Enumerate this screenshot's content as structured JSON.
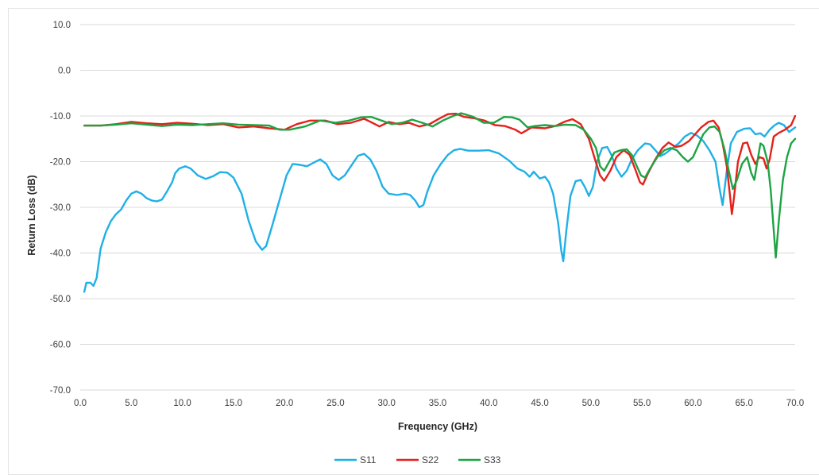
{
  "chart_data": {
    "type": "line",
    "title": "",
    "xlabel": "Frequency (GHz)",
    "ylabel": "Return Loss (dB)",
    "xlim": [
      0,
      70
    ],
    "ylim": [
      -70,
      10
    ],
    "x_ticks": [
      "0.0",
      "5.0",
      "10.0",
      "15.0",
      "20.0",
      "25.0",
      "30.0",
      "35.0",
      "40.0",
      "45.0",
      "50.0",
      "55.0",
      "60.0",
      "65.0",
      "70.0"
    ],
    "y_ticks": [
      "10.0",
      "0.0",
      "-10.0",
      "-20.0",
      "-30.0",
      "-40.0",
      "-50.0",
      "-60.0",
      "-70.0"
    ],
    "grid": "horizontal",
    "legend_position": "bottom",
    "series": [
      {
        "name": "S11",
        "color": "#1fb0e6",
        "points": [
          [
            0.4,
            -48.5
          ],
          [
            0.6,
            -46.5
          ],
          [
            1.0,
            -46.5
          ],
          [
            1.3,
            -47.2
          ],
          [
            1.6,
            -45.5
          ],
          [
            2.0,
            -39.0
          ],
          [
            2.5,
            -35.5
          ],
          [
            3.0,
            -33.0
          ],
          [
            3.5,
            -31.5
          ],
          [
            4.0,
            -30.5
          ],
          [
            4.5,
            -28.5
          ],
          [
            5.0,
            -27.0
          ],
          [
            5.5,
            -26.5
          ],
          [
            6.0,
            -27.0
          ],
          [
            6.5,
            -28.0
          ],
          [
            7.0,
            -28.5
          ],
          [
            7.5,
            -28.7
          ],
          [
            8.0,
            -28.3
          ],
          [
            8.5,
            -26.5
          ],
          [
            9.0,
            -24.5
          ],
          [
            9.3,
            -22.5
          ],
          [
            9.7,
            -21.5
          ],
          [
            10.3,
            -21.0
          ],
          [
            10.8,
            -21.5
          ],
          [
            11.5,
            -23.0
          ],
          [
            12.3,
            -23.8
          ],
          [
            13.0,
            -23.2
          ],
          [
            13.7,
            -22.3
          ],
          [
            14.4,
            -22.4
          ],
          [
            15.0,
            -23.5
          ],
          [
            15.8,
            -27.0
          ],
          [
            16.5,
            -33.0
          ],
          [
            17.2,
            -37.5
          ],
          [
            17.8,
            -39.3
          ],
          [
            18.2,
            -38.5
          ],
          [
            18.8,
            -34.0
          ],
          [
            19.5,
            -28.5
          ],
          [
            20.2,
            -23.0
          ],
          [
            20.8,
            -20.5
          ],
          [
            21.5,
            -20.7
          ],
          [
            22.2,
            -21.0
          ],
          [
            22.8,
            -20.3
          ],
          [
            23.5,
            -19.5
          ],
          [
            24.1,
            -20.5
          ],
          [
            24.7,
            -23.0
          ],
          [
            25.3,
            -24.0
          ],
          [
            25.9,
            -23.0
          ],
          [
            26.5,
            -21.0
          ],
          [
            27.2,
            -18.7
          ],
          [
            27.8,
            -18.3
          ],
          [
            28.4,
            -19.5
          ],
          [
            29.0,
            -22.0
          ],
          [
            29.6,
            -25.5
          ],
          [
            30.2,
            -27.0
          ],
          [
            31.0,
            -27.3
          ],
          [
            31.8,
            -27.0
          ],
          [
            32.3,
            -27.3
          ],
          [
            32.8,
            -28.5
          ],
          [
            33.2,
            -30.0
          ],
          [
            33.6,
            -29.5
          ],
          [
            34.0,
            -26.5
          ],
          [
            34.6,
            -23.0
          ],
          [
            35.3,
            -20.5
          ],
          [
            36.0,
            -18.5
          ],
          [
            36.6,
            -17.5
          ],
          [
            37.2,
            -17.2
          ],
          [
            38.0,
            -17.6
          ],
          [
            39.0,
            -17.6
          ],
          [
            40.0,
            -17.5
          ],
          [
            41.0,
            -18.2
          ],
          [
            42.0,
            -19.8
          ],
          [
            42.8,
            -21.5
          ],
          [
            43.5,
            -22.2
          ],
          [
            44.0,
            -23.3
          ],
          [
            44.4,
            -22.2
          ],
          [
            45.0,
            -23.7
          ],
          [
            45.5,
            -23.3
          ],
          [
            45.9,
            -24.5
          ],
          [
            46.3,
            -27.0
          ],
          [
            46.8,
            -33.5
          ],
          [
            47.1,
            -39.5
          ],
          [
            47.3,
            -41.8
          ],
          [
            47.6,
            -35.0
          ],
          [
            48.0,
            -27.5
          ],
          [
            48.5,
            -24.3
          ],
          [
            49.0,
            -24.0
          ],
          [
            49.4,
            -25.5
          ],
          [
            49.8,
            -27.5
          ],
          [
            50.2,
            -25.5
          ],
          [
            50.6,
            -20.0
          ],
          [
            51.1,
            -17.0
          ],
          [
            51.6,
            -16.8
          ],
          [
            52.0,
            -18.5
          ],
          [
            52.5,
            -21.5
          ],
          [
            53.0,
            -23.3
          ],
          [
            53.5,
            -22.0
          ],
          [
            54.0,
            -19.5
          ],
          [
            54.6,
            -17.5
          ],
          [
            55.3,
            -16.0
          ],
          [
            55.8,
            -16.2
          ],
          [
            56.3,
            -17.5
          ],
          [
            56.8,
            -18.8
          ],
          [
            57.3,
            -18.2
          ],
          [
            58.0,
            -17.0
          ],
          [
            58.6,
            -16.0
          ],
          [
            59.2,
            -14.5
          ],
          [
            59.8,
            -13.7
          ],
          [
            60.4,
            -14.3
          ],
          [
            61.0,
            -15.5
          ],
          [
            61.6,
            -17.5
          ],
          [
            62.2,
            -20.0
          ],
          [
            62.6,
            -26.0
          ],
          [
            62.9,
            -29.5
          ],
          [
            63.3,
            -22.0
          ],
          [
            63.7,
            -16.0
          ],
          [
            64.3,
            -13.5
          ],
          [
            65.0,
            -12.8
          ],
          [
            65.6,
            -12.7
          ],
          [
            66.1,
            -14.0
          ],
          [
            66.6,
            -13.8
          ],
          [
            67.0,
            -14.5
          ],
          [
            67.5,
            -13.0
          ],
          [
            68.0,
            -12.0
          ],
          [
            68.4,
            -11.5
          ],
          [
            68.9,
            -12.0
          ],
          [
            69.4,
            -13.5
          ],
          [
            70.0,
            -12.5
          ]
        ]
      },
      {
        "name": "S22",
        "color": "#e6201a",
        "points": [
          [
            0.4,
            -12.1
          ],
          [
            2.0,
            -12.1
          ],
          [
            3.5,
            -11.8
          ],
          [
            5.0,
            -11.3
          ],
          [
            6.5,
            -11.6
          ],
          [
            8.0,
            -11.8
          ],
          [
            9.5,
            -11.5
          ],
          [
            11.0,
            -11.7
          ],
          [
            12.5,
            -12.0
          ],
          [
            14.0,
            -11.8
          ],
          [
            15.5,
            -12.5
          ],
          [
            17.0,
            -12.3
          ],
          [
            18.5,
            -12.7
          ],
          [
            20.0,
            -13.0
          ],
          [
            21.2,
            -11.8
          ],
          [
            22.5,
            -11.0
          ],
          [
            24.0,
            -11.0
          ],
          [
            25.2,
            -11.8
          ],
          [
            26.5,
            -11.5
          ],
          [
            27.8,
            -10.6
          ],
          [
            28.6,
            -11.5
          ],
          [
            29.3,
            -12.3
          ],
          [
            30.2,
            -11.3
          ],
          [
            31.2,
            -11.8
          ],
          [
            32.2,
            -11.5
          ],
          [
            33.2,
            -12.3
          ],
          [
            34.2,
            -11.8
          ],
          [
            35.2,
            -10.5
          ],
          [
            36.0,
            -9.6
          ],
          [
            36.8,
            -9.5
          ],
          [
            37.6,
            -10.2
          ],
          [
            38.6,
            -10.5
          ],
          [
            39.6,
            -11.0
          ],
          [
            40.6,
            -12.0
          ],
          [
            41.6,
            -12.2
          ],
          [
            42.6,
            -13.0
          ],
          [
            43.2,
            -13.8
          ],
          [
            44.2,
            -12.5
          ],
          [
            45.5,
            -12.7
          ],
          [
            46.5,
            -12.2
          ],
          [
            47.5,
            -11.2
          ],
          [
            48.2,
            -10.7
          ],
          [
            49.0,
            -11.8
          ],
          [
            49.8,
            -15.0
          ],
          [
            50.4,
            -19.5
          ],
          [
            50.9,
            -23.0
          ],
          [
            51.3,
            -24.2
          ],
          [
            51.9,
            -22.0
          ],
          [
            52.5,
            -19.0
          ],
          [
            53.2,
            -17.5
          ],
          [
            53.8,
            -18.5
          ],
          [
            54.4,
            -22.0
          ],
          [
            54.8,
            -24.5
          ],
          [
            55.1,
            -25.0
          ],
          [
            55.6,
            -22.5
          ],
          [
            56.3,
            -19.5
          ],
          [
            57.0,
            -17.0
          ],
          [
            57.6,
            -15.8
          ],
          [
            58.3,
            -16.8
          ],
          [
            58.9,
            -16.5
          ],
          [
            59.6,
            -15.5
          ],
          [
            60.2,
            -14.0
          ],
          [
            60.8,
            -12.5
          ],
          [
            61.5,
            -11.3
          ],
          [
            62.0,
            -11.0
          ],
          [
            62.5,
            -12.5
          ],
          [
            62.9,
            -16.0
          ],
          [
            63.3,
            -21.0
          ],
          [
            63.6,
            -27.0
          ],
          [
            63.8,
            -31.5
          ],
          [
            64.0,
            -28.0
          ],
          [
            64.4,
            -20.0
          ],
          [
            64.9,
            -16.0
          ],
          [
            65.3,
            -15.8
          ],
          [
            65.7,
            -18.5
          ],
          [
            66.1,
            -20.5
          ],
          [
            66.5,
            -19.0
          ],
          [
            66.9,
            -19.3
          ],
          [
            67.2,
            -21.5
          ],
          [
            67.5,
            -19.5
          ],
          [
            67.9,
            -14.5
          ],
          [
            68.4,
            -13.7
          ],
          [
            69.0,
            -13.0
          ],
          [
            69.6,
            -12.0
          ],
          [
            70.0,
            -10.0
          ]
        ]
      },
      {
        "name": "S33",
        "color": "#1ea344",
        "points": [
          [
            0.4,
            -12.1
          ],
          [
            2.0,
            -12.1
          ],
          [
            3.5,
            -11.9
          ],
          [
            5.0,
            -11.6
          ],
          [
            6.5,
            -11.9
          ],
          [
            8.0,
            -12.2
          ],
          [
            9.5,
            -11.9
          ],
          [
            11.0,
            -12.0
          ],
          [
            12.5,
            -11.8
          ],
          [
            14.0,
            -11.6
          ],
          [
            15.5,
            -11.9
          ],
          [
            17.0,
            -12.0
          ],
          [
            18.5,
            -12.1
          ],
          [
            19.5,
            -13.0
          ],
          [
            20.5,
            -13.0
          ],
          [
            22.0,
            -12.3
          ],
          [
            23.5,
            -11.0
          ],
          [
            25.0,
            -11.5
          ],
          [
            26.3,
            -11.0
          ],
          [
            27.5,
            -10.3
          ],
          [
            28.5,
            -10.2
          ],
          [
            29.5,
            -11.0
          ],
          [
            30.5,
            -11.8
          ],
          [
            31.5,
            -11.5
          ],
          [
            32.5,
            -10.8
          ],
          [
            33.5,
            -11.5
          ],
          [
            34.5,
            -12.3
          ],
          [
            35.5,
            -11.0
          ],
          [
            36.5,
            -10.0
          ],
          [
            37.3,
            -9.4
          ],
          [
            38.5,
            -10.2
          ],
          [
            39.5,
            -11.5
          ],
          [
            40.5,
            -11.5
          ],
          [
            41.5,
            -10.2
          ],
          [
            42.3,
            -10.3
          ],
          [
            43.0,
            -10.8
          ],
          [
            43.8,
            -12.5
          ],
          [
            44.5,
            -12.2
          ],
          [
            45.5,
            -12.0
          ],
          [
            46.5,
            -12.2
          ],
          [
            47.5,
            -11.9
          ],
          [
            48.5,
            -12.0
          ],
          [
            49.3,
            -13.0
          ],
          [
            50.0,
            -15.0
          ],
          [
            50.5,
            -17.0
          ],
          [
            50.9,
            -21.0
          ],
          [
            51.3,
            -22.0
          ],
          [
            51.8,
            -20.0
          ],
          [
            52.3,
            -18.0
          ],
          [
            52.9,
            -17.5
          ],
          [
            53.5,
            -17.3
          ],
          [
            54.0,
            -18.5
          ],
          [
            54.5,
            -21.0
          ],
          [
            54.9,
            -23.0
          ],
          [
            55.3,
            -23.5
          ],
          [
            55.8,
            -21.5
          ],
          [
            56.5,
            -19.0
          ],
          [
            57.2,
            -17.5
          ],
          [
            57.8,
            -17.0
          ],
          [
            58.4,
            -17.5
          ],
          [
            59.0,
            -19.0
          ],
          [
            59.5,
            -20.0
          ],
          [
            60.0,
            -19.0
          ],
          [
            60.5,
            -16.5
          ],
          [
            61.0,
            -14.0
          ],
          [
            61.6,
            -12.5
          ],
          [
            62.1,
            -12.3
          ],
          [
            62.6,
            -13.5
          ],
          [
            63.1,
            -17.5
          ],
          [
            63.5,
            -22.0
          ],
          [
            63.9,
            -26.0
          ],
          [
            64.3,
            -24.0
          ],
          [
            64.8,
            -20.5
          ],
          [
            65.3,
            -19.0
          ],
          [
            65.7,
            -22.5
          ],
          [
            66.0,
            -24.0
          ],
          [
            66.3,
            -20.0
          ],
          [
            66.6,
            -16.0
          ],
          [
            66.9,
            -16.5
          ],
          [
            67.3,
            -20.0
          ],
          [
            67.6,
            -26.0
          ],
          [
            67.9,
            -35.0
          ],
          [
            68.1,
            -41.0
          ],
          [
            68.4,
            -33.0
          ],
          [
            68.8,
            -24.0
          ],
          [
            69.2,
            -19.0
          ],
          [
            69.6,
            -16.0
          ],
          [
            70.0,
            -15.0
          ]
        ]
      }
    ]
  }
}
